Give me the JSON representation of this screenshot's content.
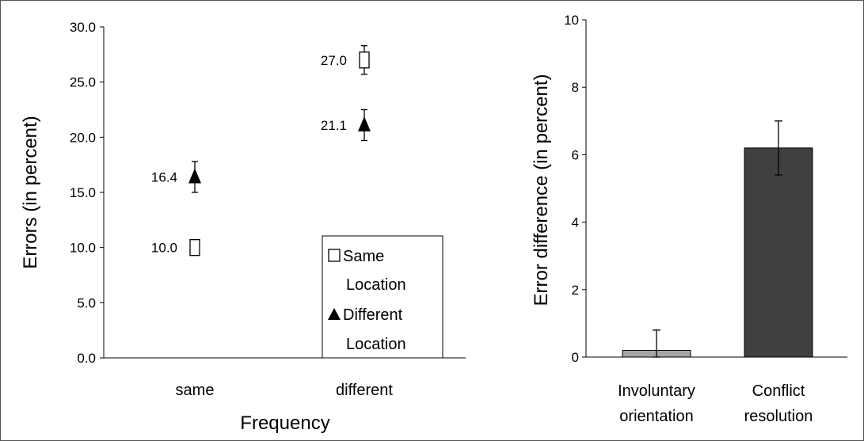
{
  "chart_data": [
    {
      "type": "scatter",
      "categories": [
        "same",
        "different"
      ],
      "xlabel": "Frequency",
      "ylabel": "Errors (in percent)",
      "ylim": [
        0,
        30
      ],
      "yticks": [
        "0.0",
        "5.0",
        "10.0",
        "15.0",
        "20.0",
        "25.0",
        "30.0"
      ],
      "series": [
        {
          "name": "Same Location",
          "legend_lines": [
            "Same",
            "Location"
          ],
          "marker": "open-square",
          "values": [
            10.0,
            27.0
          ],
          "error": [
            0.0,
            1.3
          ],
          "labels": [
            "10.0",
            "27.0"
          ]
        },
        {
          "name": "Different Location",
          "legend_lines": [
            "Different",
            "Location"
          ],
          "marker": "filled-triangle",
          "values": [
            16.4,
            21.1
          ],
          "error": [
            1.4,
            1.4
          ],
          "labels": [
            "16.4",
            "21.1"
          ]
        }
      ],
      "legend_position": "bottom-right",
      "grid": false
    },
    {
      "type": "bar",
      "categories": [
        {
          "lines": [
            "Involuntary",
            "orientation"
          ]
        },
        {
          "lines": [
            "Conflict",
            "resolution"
          ]
        }
      ],
      "values": [
        0.2,
        6.2
      ],
      "error": [
        0.6,
        0.8
      ],
      "colors": [
        "#a6a6a6",
        "#404040"
      ],
      "xlabel": "",
      "ylabel": "Error difference (in percent)",
      "ylim": [
        0,
        10
      ],
      "yticks": [
        "0",
        "2",
        "4",
        "6",
        "8",
        "10"
      ],
      "grid": false
    }
  ]
}
